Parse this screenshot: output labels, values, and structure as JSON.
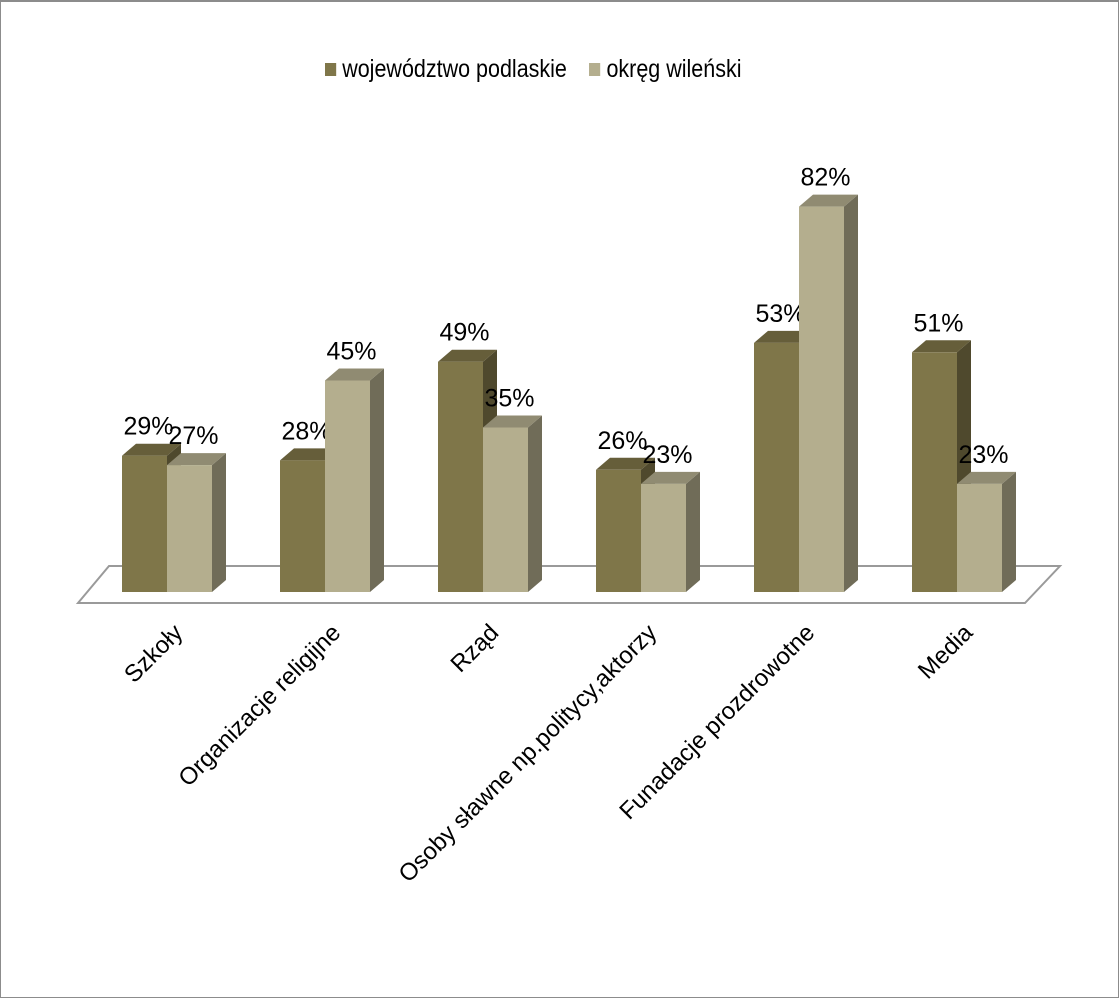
{
  "chart_data": {
    "type": "bar",
    "categories": [
      "Szkoły",
      "Organizacje religijne",
      "Rząd",
      "Osoby sławne np.politycy,aktorzy",
      "Funadacje prozdrowotne",
      "Media"
    ],
    "series": [
      {
        "name": "województwo podlaskie",
        "values": [
          29,
          28,
          49,
          26,
          53,
          51
        ],
        "labels": [
          "29%",
          "28%",
          "49%",
          "26%",
          "53%",
          "51%"
        ],
        "color": "#7f7649"
      },
      {
        "name": "okręg wileński",
        "values": [
          27,
          45,
          35,
          23,
          82,
          23
        ],
        "labels": [
          "27%",
          "45%",
          "35%",
          "23%",
          "82%",
          "23%"
        ],
        "color": "#b4ae8e"
      }
    ],
    "title": "",
    "xlabel": "",
    "ylabel": "",
    "legend_position": "top",
    "style": "3d-clustered-column",
    "grid": false
  }
}
